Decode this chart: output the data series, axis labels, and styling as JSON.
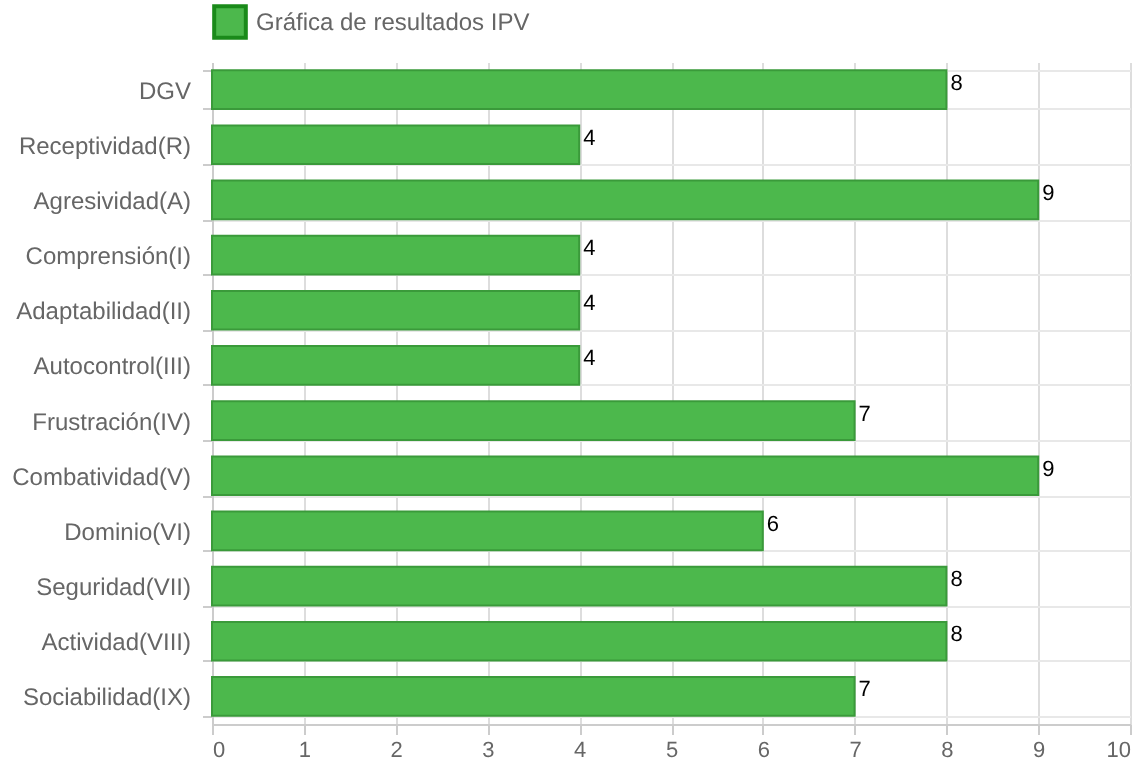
{
  "chart_data": {
    "type": "bar",
    "orientation": "horizontal",
    "categories": [
      "DGV",
      "Receptividad(R)",
      "Agresividad(A)",
      "Comprensión(I)",
      "Adaptabilidad(II)",
      "Autocontrol(III)",
      "Frustración(IV)",
      "Combatividad(V)",
      "Dominio(VI)",
      "Seguridad(VII)",
      "Actividad(VIII)",
      "Sociabilidad(IX)"
    ],
    "series": [
      {
        "name": "Gráfica de resultados IPV",
        "color": "#4cb84c",
        "values": [
          8,
          4,
          9,
          4,
          4,
          4,
          7,
          9,
          6,
          8,
          8,
          7
        ]
      }
    ],
    "xlim": [
      0,
      10
    ],
    "xticks": [
      0,
      1,
      2,
      3,
      4,
      5,
      6,
      7,
      8,
      9,
      10
    ],
    "grid": true,
    "legend": "top",
    "data_labels": true
  }
}
